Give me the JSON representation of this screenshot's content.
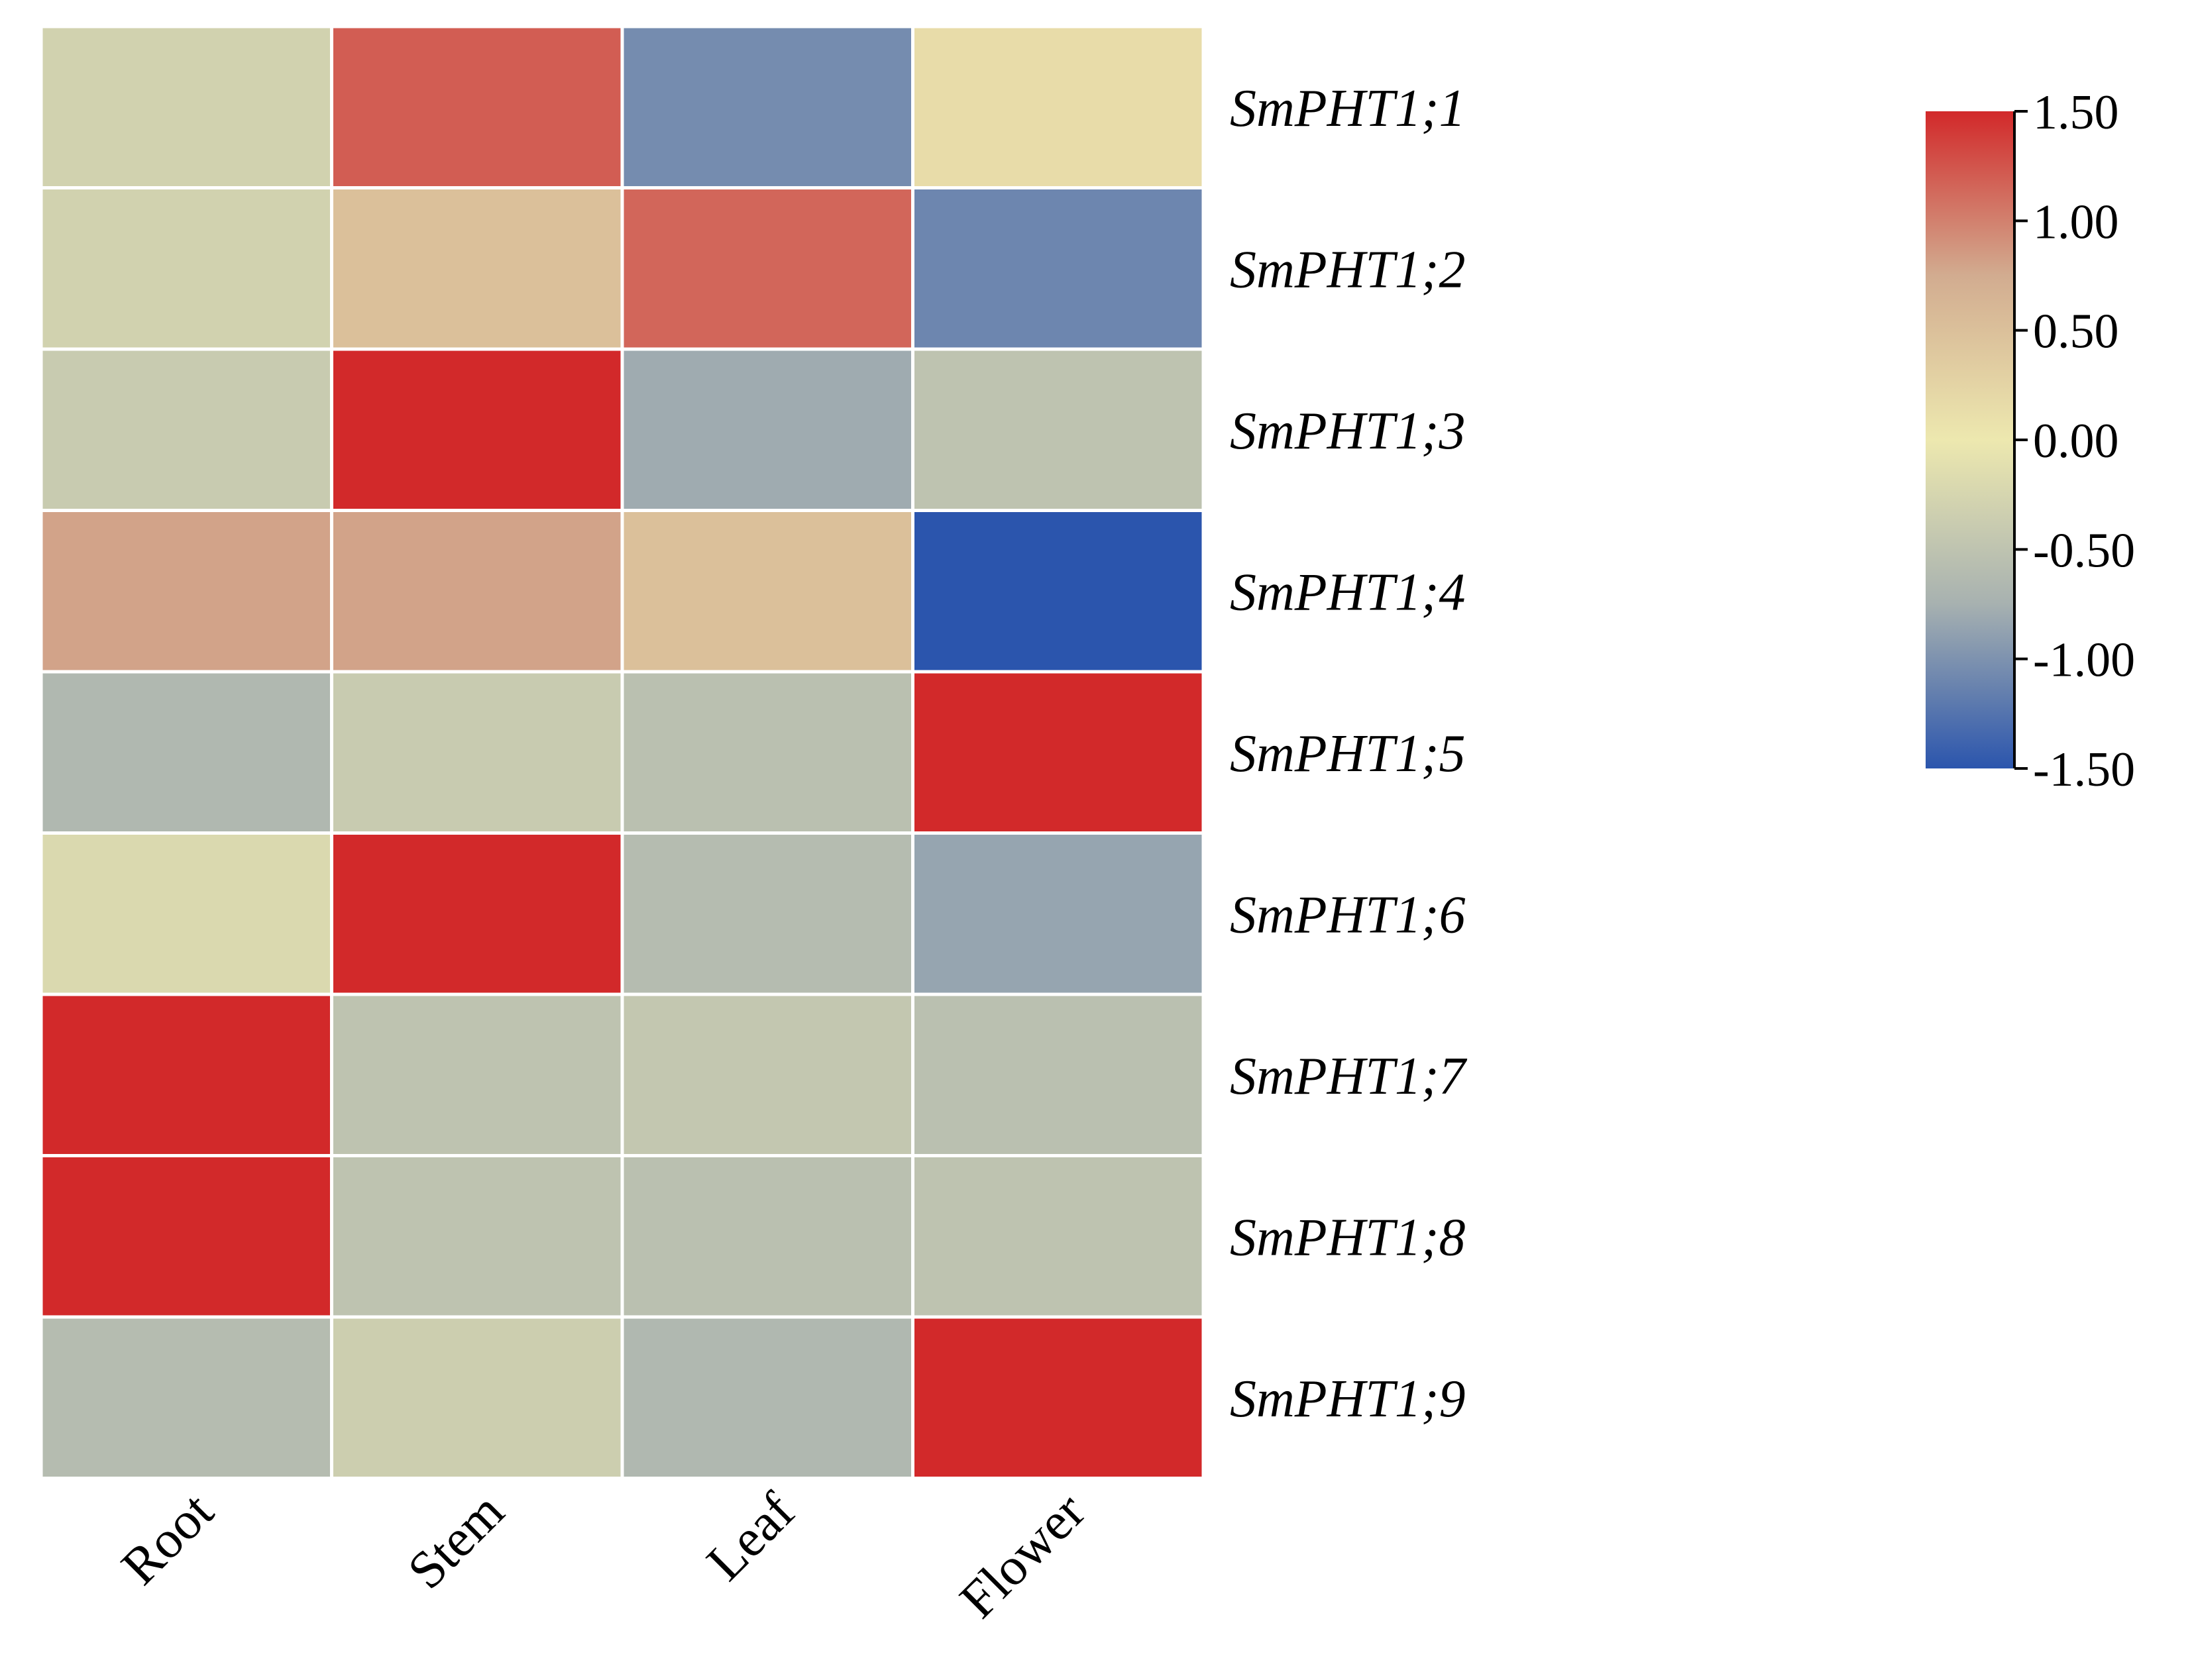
{
  "chart_data": {
    "type": "heatmap",
    "title": "",
    "rows": [
      "SmPHT1;1",
      "SmPHT1;2",
      "SmPHT1;3",
      "SmPHT1;4",
      "SmPHT1;5",
      "SmPHT1;6",
      "SmPHT1;7",
      "SmPHT1;8",
      "SmPHT1;9"
    ],
    "columns": [
      "Root",
      "Stem",
      "Leaf",
      "Flower"
    ],
    "values": [
      [
        -0.3,
        1.2,
        -1.05,
        0.15
      ],
      [
        -0.3,
        0.5,
        1.15,
        -1.1
      ],
      [
        -0.4,
        1.5,
        -0.8,
        -0.5
      ],
      [
        0.8,
        0.8,
        0.5,
        -1.5
      ],
      [
        -0.65,
        -0.4,
        -0.55,
        1.5
      ],
      [
        -0.2,
        1.5,
        -0.6,
        -0.85
      ],
      [
        1.5,
        -0.5,
        -0.45,
        -0.55
      ],
      [
        1.5,
        -0.5,
        -0.55,
        -0.5
      ],
      [
        -0.6,
        -0.35,
        -0.65,
        1.5
      ]
    ],
    "colorbar": {
      "min": -1.5,
      "max": 1.5,
      "ticks": [
        "1.50",
        "1.00",
        "0.50",
        "0.00",
        "-0.50",
        "-1.00",
        "-1.50"
      ],
      "colors": [
        "#2b55ad",
        "#a7b1b0",
        "#ede8af",
        "#d2ac90",
        "#d2292a"
      ]
    }
  }
}
